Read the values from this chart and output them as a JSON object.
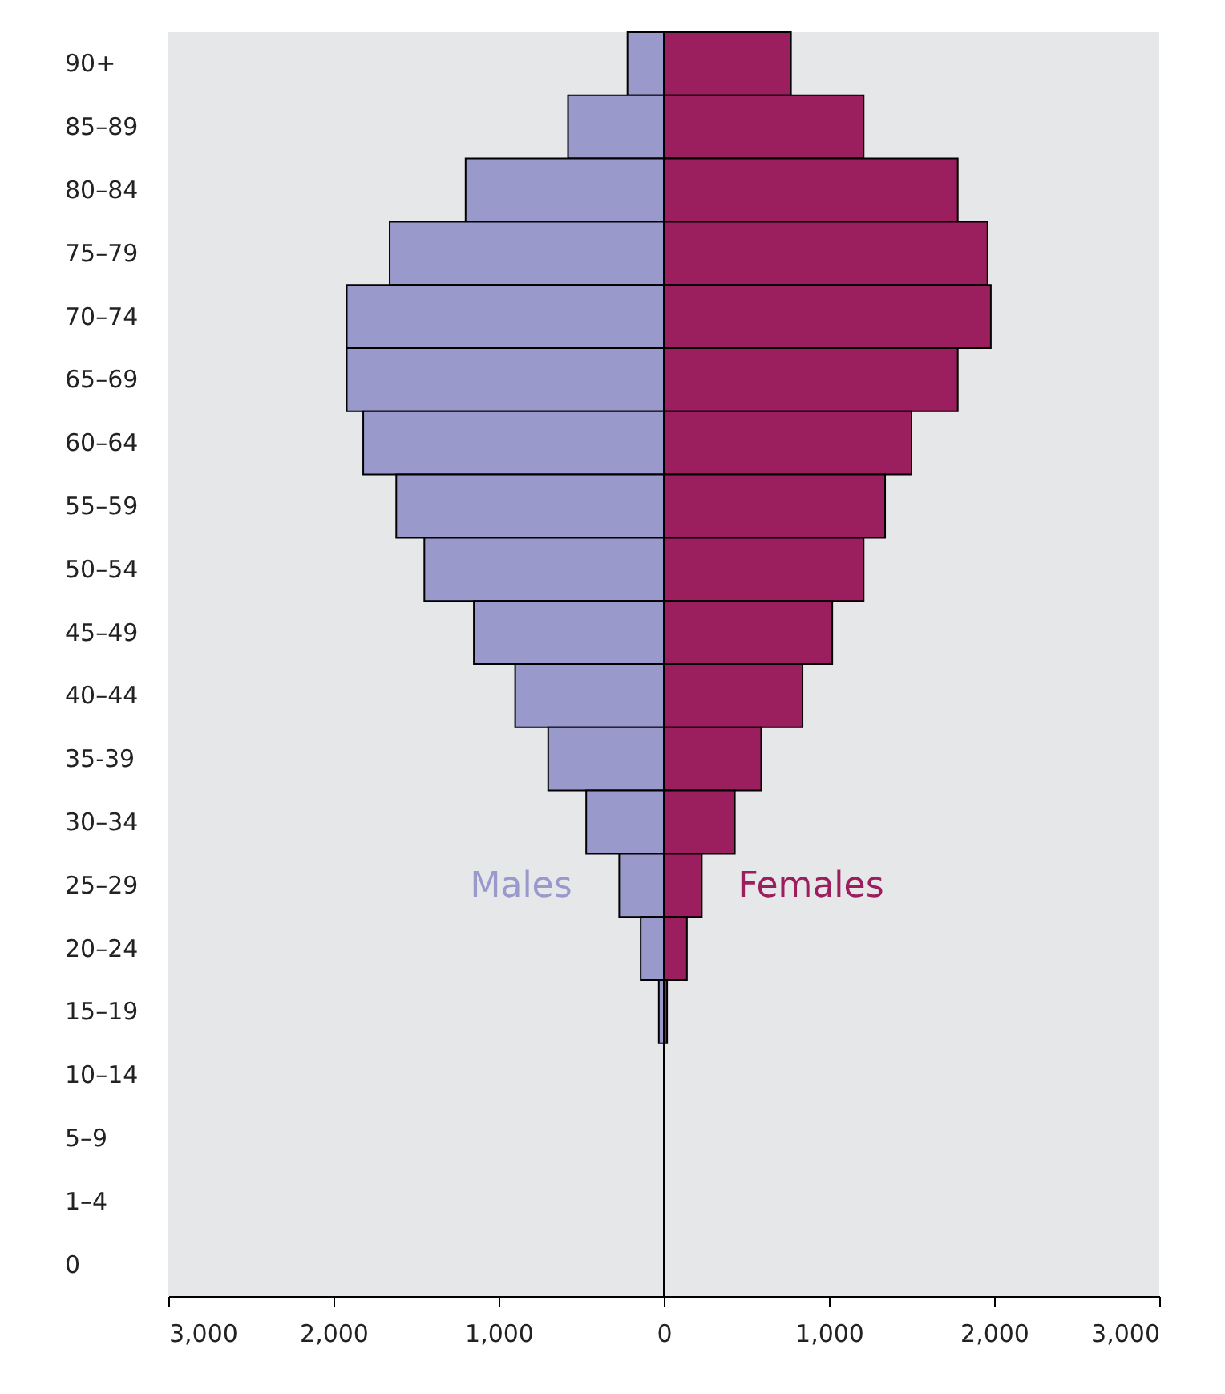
{
  "chart_data": {
    "type": "bar",
    "orientation": "horizontal",
    "stacked": true,
    "categories": [
      "90+",
      "85–89",
      "80–84",
      "75–79",
      "70–74",
      "65–69",
      "60–64",
      "55–59",
      "50–54",
      "45–49",
      "40–44",
      "35-39",
      "30–34",
      "25–29",
      "20–24",
      "15–19",
      "10–14",
      "5–9",
      "1–4",
      "0"
    ],
    "series": [
      {
        "name": "Males",
        "color": "#9999cc",
        "values": [
          -220,
          -580,
          -1200,
          -1660,
          -1920,
          -1920,
          -1820,
          -1620,
          -1450,
          -1150,
          -900,
          -700,
          -470,
          -270,
          -140,
          -30,
          0,
          0,
          0,
          0
        ]
      },
      {
        "name": "Females",
        "color": "#9b1f5e",
        "values": [
          770,
          1210,
          1780,
          1960,
          1980,
          1780,
          1500,
          1340,
          1210,
          1020,
          840,
          590,
          430,
          230,
          140,
          20,
          0,
          0,
          0,
          0
        ]
      }
    ],
    "xlim": [
      -3000,
      3000
    ],
    "xticks": [
      {
        "value": -3000,
        "label": "3,000"
      },
      {
        "value": -2000,
        "label": "2,000"
      },
      {
        "value": -1000,
        "label": "1,000"
      },
      0,
      {
        "value": 1000,
        "label": "1,000"
      },
      {
        "value": 2000,
        "label": "2,000"
      },
      {
        "value": 3000,
        "label": "3,000"
      }
    ],
    "ref_lines": [
      {
        "axis": "x",
        "value": 0,
        "color": "#000000"
      }
    ],
    "grid": false
  }
}
